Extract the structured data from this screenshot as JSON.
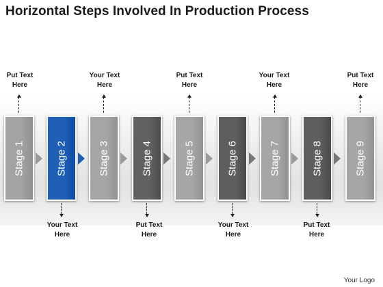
{
  "title": "Horizontal Steps Involved In Production Process",
  "stages": [
    {
      "label": "Stage 1",
      "color": "#a3a3a3"
    },
    {
      "label": "Stage 2",
      "color": "#1f5fb5"
    },
    {
      "label": "Stage 3",
      "color": "#a6a6a6"
    },
    {
      "label": "Stage 4",
      "color": "#616161"
    },
    {
      "label": "Stage 5",
      "color": "#a6a6a6"
    },
    {
      "label": "Stage 6",
      "color": "#5e5e5e"
    },
    {
      "label": "Stage 7",
      "color": "#a6a6a6"
    },
    {
      "label": "Stage 8",
      "color": "#5e5e5e"
    },
    {
      "label": "Stage 9",
      "color": "#a6a6a6"
    }
  ],
  "top_notes": [
    {
      "line1": "Put Text",
      "line2": "Here"
    },
    {
      "line1": "Your Text",
      "line2": "Here"
    },
    {
      "line1": "Put Text",
      "line2": "Here"
    },
    {
      "line1": "Your Text",
      "line2": "Here"
    },
    {
      "line1": "Put Text",
      "line2": "Here"
    }
  ],
  "bottom_notes": [
    {
      "line1": "Your Text",
      "line2": "Here"
    },
    {
      "line1": "Put Text",
      "line2": "Here"
    },
    {
      "line1": "Your Text",
      "line2": "Here"
    },
    {
      "line1": "Put Text",
      "line2": "Here"
    }
  ],
  "logo": "Your Logo"
}
